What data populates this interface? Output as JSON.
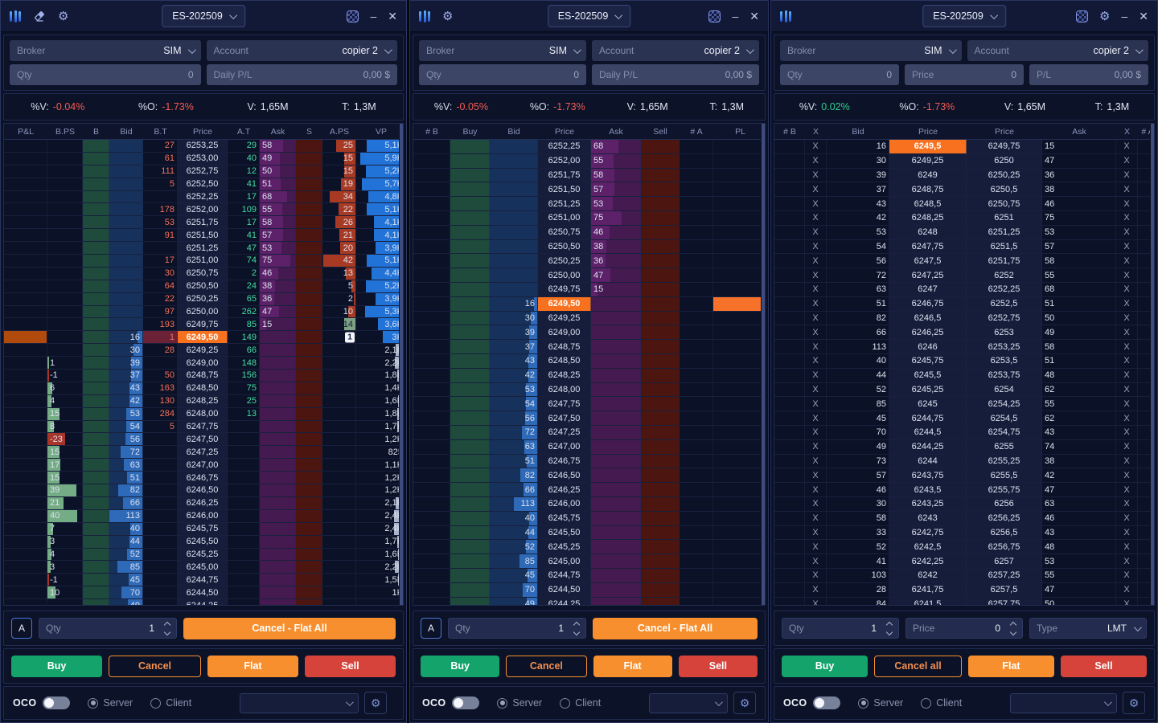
{
  "window_controls": {
    "minimize": "–",
    "close": "✕"
  },
  "colors": {
    "accent_orange": "#F7711F",
    "position_block": "#B04A0D",
    "pl_block": "#F6722A",
    "buy_green": "#13A36B",
    "sell_red": "#D6433A",
    "flat_orange": "#F78F2E",
    "neg_text": "#F25C52",
    "pos_text": "#2FCD8D",
    "bid_bar": "#2E6AB8",
    "ask_bar": "#5C2168",
    "aps_bar": "#A83A24",
    "aps_neg": "#7DA283",
    "bps_pos": "#74AC85",
    "bps_neg": "#A8342A",
    "vp_bar": "#2273D8",
    "vp_bar_dim": "#A9B4CC",
    "band_buy": "#1E4B3C",
    "band_bid": "#16325C",
    "band_ask": "#451A50",
    "band_sell": "#4D150F",
    "bt_current_bg": "#6B2136"
  },
  "panels": [
    {
      "titlebar": {
        "instrument": "ES-202509",
        "left_icons": [
          "columns-icon",
          "eraser-icon",
          "gear-icon"
        ],
        "right_icons": [
          "checker-icon",
          "minimize",
          "close"
        ]
      },
      "fields": {
        "broker_label": "Broker",
        "broker_value": "SIM",
        "account_label": "Account",
        "account_value": "copier 2",
        "qty_label": "Qty",
        "qty_value": "0",
        "pl_label": "Daily P/L",
        "pl_value": "0,00 $"
      },
      "stats": [
        {
          "label": "%V:",
          "value": "-0.04%",
          "tone": "neg"
        },
        {
          "label": "%O:",
          "value": "-1.73%",
          "tone": "neg"
        },
        {
          "label": "V:",
          "value": "1,65M",
          "tone": "plain"
        },
        {
          "label": "T:",
          "value": "1,3M",
          "tone": "plain"
        }
      ],
      "dom": {
        "headers": [
          "P&L",
          "B.PS",
          "B",
          "Bid",
          "B.T",
          "Price",
          "A.T",
          "Ask",
          "S",
          "A.PS",
          "VP"
        ],
        "current_index": 15,
        "badge": "1",
        "rows": [
          [
            null,
            null,
            "27",
            "6253,25",
            "29",
            "58",
            "25",
            "5,1K"
          ],
          [
            null,
            null,
            "61",
            "6253,00",
            "40",
            "49",
            "15",
            "5,9K"
          ],
          [
            null,
            null,
            "111",
            "6252,75",
            "12",
            "50",
            "15",
            "5,2K"
          ],
          [
            null,
            null,
            "5",
            "6252,50",
            "41",
            "51",
            "19",
            "5,7K"
          ],
          [
            null,
            null,
            null,
            "6252,25",
            "17",
            "68",
            "34",
            "4,8K"
          ],
          [
            null,
            null,
            "178",
            "6252,00",
            "109",
            "55",
            "22",
            "5,1K"
          ],
          [
            null,
            null,
            "53",
            "6251,75",
            "17",
            "58",
            "26",
            "4,1K"
          ],
          [
            null,
            null,
            "91",
            "6251,50",
            "41",
            "57",
            "21",
            "4,1K"
          ],
          [
            null,
            null,
            null,
            "6251,25",
            "47",
            "53",
            "20",
            "3,9K"
          ],
          [
            null,
            null,
            "17",
            "6251,00",
            "74",
            "75",
            "42",
            "5,1K"
          ],
          [
            null,
            null,
            "30",
            "6250,75",
            "2",
            "46",
            "13",
            "4,4K"
          ],
          [
            null,
            null,
            "64",
            "6250,50",
            "24",
            "38",
            "5",
            "5,2K"
          ],
          [
            null,
            null,
            "22",
            "6250,25",
            "65",
            "36",
            "2",
            "3,9K"
          ],
          [
            null,
            null,
            "97",
            "6250,00",
            "262",
            "47",
            "10",
            "5,3K"
          ],
          [
            null,
            null,
            "193",
            "6249,75",
            "85",
            "15",
            "-14",
            "3,6K"
          ],
          [
            null,
            "16",
            "1",
            "6249,50",
            "149",
            null,
            null,
            "3K"
          ],
          [
            null,
            "30",
            "28",
            "6249,25",
            "66",
            null,
            null,
            "2,1K"
          ],
          [
            "1",
            "39",
            null,
            "6249,00",
            "148",
            null,
            null,
            "2,2K"
          ],
          [
            "-1",
            "37",
            "50",
            "6248,75",
            "156",
            null,
            null,
            "1,8K"
          ],
          [
            "6",
            "43",
            "163",
            "6248,50",
            "75",
            null,
            null,
            "1,4K"
          ],
          [
            "4",
            "42",
            "130",
            "6248,25",
            "25",
            null,
            null,
            "1,6K"
          ],
          [
            "15",
            "53",
            "284",
            "6248,00",
            "13",
            null,
            null,
            "1,8K"
          ],
          [
            "8",
            "54",
            "5",
            "6247,75",
            null,
            null,
            null,
            "1,7K"
          ],
          [
            "-23",
            "56",
            null,
            "6247,50",
            null,
            null,
            null,
            "1,2K"
          ],
          [
            "15",
            "72",
            null,
            "6247,25",
            null,
            null,
            null,
            "825"
          ],
          [
            "17",
            "63",
            null,
            "6247,00",
            null,
            null,
            null,
            "1,1K"
          ],
          [
            "15",
            "51",
            null,
            "6246,75",
            null,
            null,
            null,
            "1,2K"
          ],
          [
            "39",
            "82",
            null,
            "6246,50",
            null,
            null,
            null,
            "1,2K"
          ],
          [
            "21",
            "66",
            null,
            "6246,25",
            null,
            null,
            null,
            "2,1K"
          ],
          [
            "40",
            "113",
            null,
            "6246,00",
            null,
            null,
            null,
            "2,4K"
          ],
          [
            "7",
            "40",
            null,
            "6245,75",
            null,
            null,
            null,
            "2,4K"
          ],
          [
            "3",
            "44",
            null,
            "6245,50",
            null,
            null,
            null,
            "1,7K"
          ],
          [
            "4",
            "52",
            null,
            "6245,25",
            null,
            null,
            null,
            "1,6K"
          ],
          [
            "3",
            "85",
            null,
            "6245,00",
            null,
            null,
            null,
            "2,2K"
          ],
          [
            "-1",
            "45",
            null,
            "6244,75",
            null,
            null,
            null,
            "1,5K"
          ],
          [
            "10",
            "70",
            null,
            "6244,50",
            null,
            null,
            null,
            "1K"
          ],
          [
            null,
            "49",
            null,
            "6244,25",
            null,
            null,
            null,
            null
          ]
        ]
      },
      "order": {
        "auto_label": "A",
        "qty_label": "Qty",
        "qty_value": "1",
        "flat_all_label": "Cancel - Flat All"
      },
      "actions": [
        {
          "label": "Buy"
        },
        {
          "label": "Cancel"
        },
        {
          "label": "Flat"
        },
        {
          "label": "Sell"
        }
      ],
      "oco": {
        "label": "OCO",
        "server_label": "Server",
        "client_label": "Client"
      }
    },
    {
      "titlebar": {
        "instrument": "ES-202509",
        "left_icons": [
          "columns-icon",
          "gear-icon"
        ],
        "right_icons": [
          "checker-icon",
          "minimize",
          "close"
        ]
      },
      "fields": {
        "broker_label": "Broker",
        "broker_value": "SIM",
        "account_label": "Account",
        "account_value": "copier 2",
        "qty_label": "Qty",
        "qty_value": "0",
        "pl_label": "Daily P/L",
        "pl_value": "0,00 $"
      },
      "stats": [
        {
          "label": "%V:",
          "value": "-0.05%",
          "tone": "neg"
        },
        {
          "label": "%O:",
          "value": "-1.73%",
          "tone": "neg"
        },
        {
          "label": "V:",
          "value": "1,65M",
          "tone": "plain"
        },
        {
          "label": "T:",
          "value": "1,3M",
          "tone": "plain"
        }
      ],
      "dom": {
        "headers": [
          "# B",
          "Buy",
          "Bid",
          "Price",
          "Ask",
          "Sell",
          "# A",
          "PL"
        ],
        "current_index": 11,
        "rows": [
          [
            null,
            "6252,25",
            "68"
          ],
          [
            null,
            "6252,00",
            "55"
          ],
          [
            null,
            "6251,75",
            "58"
          ],
          [
            null,
            "6251,50",
            "57"
          ],
          [
            null,
            "6251,25",
            "53"
          ],
          [
            null,
            "6251,00",
            "75"
          ],
          [
            null,
            "6250,75",
            "46"
          ],
          [
            null,
            "6250,50",
            "38"
          ],
          [
            null,
            "6250,25",
            "36"
          ],
          [
            null,
            "6250,00",
            "47"
          ],
          [
            null,
            "6249,75",
            "15"
          ],
          [
            "16",
            "6249,50",
            null
          ],
          [
            "30",
            "6249,25",
            null
          ],
          [
            "39",
            "6249,00",
            null
          ],
          [
            "37",
            "6248,75",
            null
          ],
          [
            "43",
            "6248,50",
            null
          ],
          [
            "42",
            "6248,25",
            null
          ],
          [
            "53",
            "6248,00",
            null
          ],
          [
            "54",
            "6247,75",
            null
          ],
          [
            "56",
            "6247,50",
            null
          ],
          [
            "72",
            "6247,25",
            null
          ],
          [
            "63",
            "6247,00",
            null
          ],
          [
            "51",
            "6246,75",
            null
          ],
          [
            "82",
            "6246,50",
            null
          ],
          [
            "66",
            "6246,25",
            null
          ],
          [
            "113",
            "6246,00",
            null
          ],
          [
            "40",
            "6245,75",
            null
          ],
          [
            "44",
            "6245,50",
            null
          ],
          [
            "52",
            "6245,25",
            null
          ],
          [
            "85",
            "6245,00",
            null
          ],
          [
            "45",
            "6244,75",
            null
          ],
          [
            "70",
            "6244,50",
            null
          ],
          [
            "49",
            "6244,25",
            null
          ]
        ]
      },
      "order": {
        "auto_label": "A",
        "qty_label": "Qty",
        "qty_value": "1",
        "flat_all_label": "Cancel - Flat All"
      },
      "actions": [
        {
          "label": "Buy"
        },
        {
          "label": "Cancel"
        },
        {
          "label": "Flat"
        },
        {
          "label": "Sell"
        }
      ],
      "oco": {
        "label": "OCO",
        "server_label": "Server",
        "client_label": "Client"
      }
    },
    {
      "titlebar": {
        "instrument": "ES-202509",
        "left_icons": [
          "columns-icon"
        ],
        "right_icons": [
          "checker-icon",
          "gear-icon",
          "minimize",
          "close"
        ]
      },
      "fields": {
        "broker_label": "Broker",
        "broker_value": "SIM",
        "account_label": "Account",
        "account_value": "copier 2",
        "qty_label": "Qty",
        "qty_value": "0",
        "price_label": "Price",
        "price_value": "0",
        "pl_label": "P/L",
        "pl_value": "0,00 $"
      },
      "stats": [
        {
          "label": "%V:",
          "value": "0.02%",
          "tone": "pos"
        },
        {
          "label": "%O:",
          "value": "-1.73%",
          "tone": "neg"
        },
        {
          "label": "V:",
          "value": "1,65M",
          "tone": "plain"
        },
        {
          "label": "T:",
          "value": "1,3M",
          "tone": "plain"
        }
      ],
      "dom": {
        "headers": [
          "# B",
          "X",
          "Bid",
          "Price",
          "Price",
          "Ask",
          "X",
          "# A"
        ],
        "current_index": 0,
        "x_mark": "X",
        "rows": [
          [
            "16",
            "6249,5",
            "6249,75",
            "15"
          ],
          [
            "30",
            "6249,25",
            "6250",
            "47"
          ],
          [
            "39",
            "6249",
            "6250,25",
            "36"
          ],
          [
            "37",
            "6248,75",
            "6250,5",
            "38"
          ],
          [
            "43",
            "6248,5",
            "6250,75",
            "46"
          ],
          [
            "42",
            "6248,25",
            "6251",
            "75"
          ],
          [
            "53",
            "6248",
            "6251,25",
            "53"
          ],
          [
            "54",
            "6247,75",
            "6251,5",
            "57"
          ],
          [
            "56",
            "6247,5",
            "6251,75",
            "58"
          ],
          [
            "72",
            "6247,25",
            "6252",
            "55"
          ],
          [
            "63",
            "6247",
            "6252,25",
            "68"
          ],
          [
            "51",
            "6246,75",
            "6252,5",
            "51"
          ],
          [
            "82",
            "6246,5",
            "6252,75",
            "50"
          ],
          [
            "66",
            "6246,25",
            "6253",
            "49"
          ],
          [
            "113",
            "6246",
            "6253,25",
            "58"
          ],
          [
            "40",
            "6245,75",
            "6253,5",
            "51"
          ],
          [
            "44",
            "6245,5",
            "6253,75",
            "48"
          ],
          [
            "52",
            "6245,25",
            "6254",
            "62"
          ],
          [
            "85",
            "6245",
            "6254,25",
            "55"
          ],
          [
            "45",
            "6244,75",
            "6254,5",
            "62"
          ],
          [
            "70",
            "6244,5",
            "6254,75",
            "43"
          ],
          [
            "49",
            "6244,25",
            "6255",
            "74"
          ],
          [
            "73",
            "6244",
            "6255,25",
            "38"
          ],
          [
            "57",
            "6243,75",
            "6255,5",
            "42"
          ],
          [
            "46",
            "6243,5",
            "6255,75",
            "47"
          ],
          [
            "30",
            "6243,25",
            "6256",
            "63"
          ],
          [
            "58",
            "6243",
            "6256,25",
            "46"
          ],
          [
            "33",
            "6242,75",
            "6256,5",
            "43"
          ],
          [
            "52",
            "6242,5",
            "6256,75",
            "48"
          ],
          [
            "41",
            "6242,25",
            "6257",
            "53"
          ],
          [
            "103",
            "6242",
            "6257,25",
            "55"
          ],
          [
            "28",
            "6241,75",
            "6257,5",
            "47"
          ],
          [
            "84",
            "6241,5",
            "6257,75",
            "50"
          ]
        ]
      },
      "order": {
        "qty_label": "Qty",
        "qty_value": "1",
        "price_label": "Price",
        "price_value": "0",
        "type_label": "Type",
        "type_value": "LMT"
      },
      "actions": [
        {
          "label": "Buy"
        },
        {
          "label": "Cancel all"
        },
        {
          "label": "Flat"
        },
        {
          "label": "Sell"
        }
      ],
      "oco": {
        "label": "OCO",
        "server_label": "Server",
        "client_label": "Client"
      }
    }
  ]
}
